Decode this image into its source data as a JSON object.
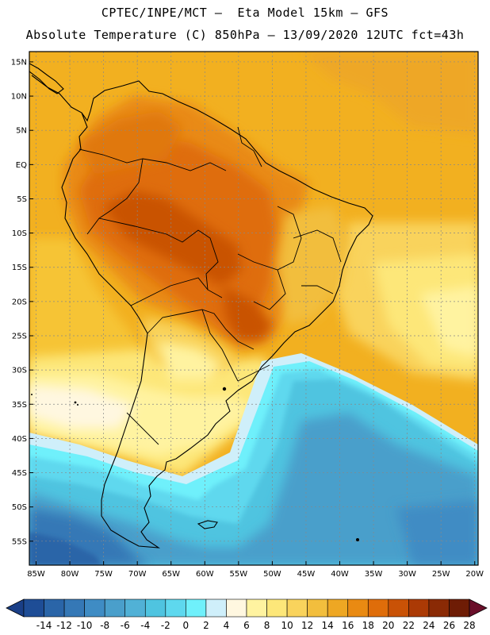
{
  "header": {
    "line1": "CPTEC/INPE/MCT –  Eta Model 15km – GFS",
    "line2": "Absolute Temperature (C) 850hPa – 13/09/2020 12UTC fct=43h"
  },
  "map": {
    "lat_labels": [
      "15N",
      "10N",
      "5N",
      "EQ",
      "5S",
      "10S",
      "15S",
      "20S",
      "25S",
      "30S",
      "35S",
      "40S",
      "45S",
      "50S",
      "55S"
    ],
    "lon_labels": [
      "85W",
      "80W",
      "75W",
      "70W",
      "65W",
      "60W",
      "55W",
      "50W",
      "45W",
      "40W",
      "35W",
      "30W",
      "25W",
      "20W"
    ],
    "lon_range": [
      -86,
      -19.5
    ],
    "lat_range": [
      -58.5,
      16.5
    ]
  },
  "colorbar": {
    "labels": [
      "-14",
      "-12",
      "-10",
      "-8",
      "-6",
      "-4",
      "-2",
      "0",
      "2",
      "4",
      "6",
      "8",
      "10",
      "12",
      "14",
      "16",
      "18",
      "20",
      "22",
      "24",
      "26",
      "28"
    ],
    "colors": [
      "#1e4d96",
      "#2a65a8",
      "#3578b6",
      "#3f8cc4",
      "#4a9fcb",
      "#51b1d6",
      "#4fc4e0",
      "#5ed8ee",
      "#6ff0fb",
      "#cfeffa",
      "#fff7e0",
      "#fff3a0",
      "#fde779",
      "#f9d35c",
      "#f2be3d",
      "#eea723",
      "#e98a12",
      "#df6d0a",
      "#c95206",
      "#ab3a05",
      "#8a2a05",
      "#6e1c05"
    ]
  }
}
